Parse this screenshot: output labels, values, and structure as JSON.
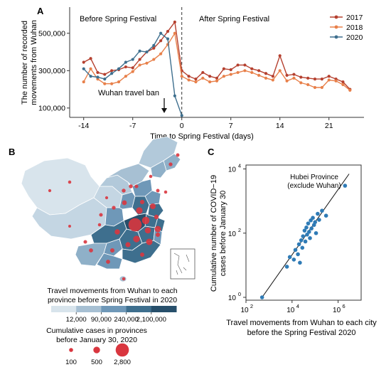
{
  "panel_a": {
    "label": "A",
    "before_label": "Before Spring Festival",
    "after_label": "After Spring Festival",
    "ban_label": "Wuhan travel ban",
    "xlabel": "Time to Spring Festival (days)",
    "ylabel_line1": "The number of recorded",
    "ylabel_line2": "movements from Wuhan",
    "xticks": [
      "-14",
      "-7",
      "0",
      "7",
      "14",
      "21"
    ],
    "yticks": [
      "100,000",
      "300,000",
      "500,000"
    ]
  },
  "panel_b": {
    "label": "B",
    "legend_title_line1": "Travel movements from Wuhan to each",
    "legend_title_line2": "province before Spring Festival in 2020",
    "color_ticks": [
      "12,000",
      "90,000",
      "240,000",
      "2,100,000"
    ],
    "size_title_line1": "Cumulative cases in provinces",
    "size_title_line2": "before January 30, 2020",
    "size_ticks": [
      "100",
      "500",
      "2,800"
    ]
  },
  "panel_c": {
    "label": "C",
    "annotation_line1": "Hubei Province",
    "annotation_line2": "(exclude Wuhan)",
    "xlabel_line1": "Travel movements from Wuhan to each city",
    "xlabel_line2": "before the Spring Festival 2020",
    "ylabel_line1": "Cumulative number of COVID−19",
    "ylabel_line2": "cases before January 30",
    "xtick_base": [
      "10",
      "10",
      "10"
    ],
    "xtick_exp": [
      "2",
      "4",
      "6"
    ],
    "ytick_base": [
      "10",
      "10",
      "10"
    ],
    "ytick_exp": [
      "0",
      "2",
      "4"
    ]
  },
  "chart_data": [
    {
      "type": "line",
      "title": "",
      "xlabel": "Time to Spring Festival (days)",
      "ylabel": "The number of recorded movements from Wuhan",
      "xlim": [
        -16,
        26
      ],
      "ylim": [
        50000,
        640000
      ],
      "series": [
        {
          "name": "2017",
          "color": "#b5402f",
          "x": [
            -14,
            -13,
            -12,
            -11,
            -10,
            -9,
            -8,
            -7,
            -6,
            -5,
            -4,
            -3,
            -2,
            -1,
            0,
            1,
            2,
            3,
            4,
            5,
            6,
            7,
            8,
            9,
            10,
            11,
            12,
            13,
            14,
            15,
            16,
            17,
            18,
            19,
            20,
            21,
            22,
            23,
            24
          ],
          "values": [
            345000,
            365000,
            290000,
            280000,
            300000,
            305000,
            320000,
            315000,
            360000,
            400000,
            420000,
            460000,
            510000,
            560000,
            300000,
            270000,
            255000,
            290000,
            270000,
            260000,
            310000,
            305000,
            330000,
            330000,
            310000,
            300000,
            285000,
            270000,
            380000,
            275000,
            280000,
            265000,
            260000,
            255000,
            255000,
            270000,
            255000,
            240000,
            200000
          ]
        },
        {
          "name": "2018",
          "color": "#e8804a",
          "x": [
            -14,
            -13,
            -12,
            -11,
            -10,
            -9,
            -8,
            -7,
            -6,
            -5,
            -4,
            -3,
            -2,
            -1,
            0,
            1,
            2,
            3,
            4,
            5,
            6,
            7,
            8,
            9,
            10,
            11,
            12,
            13,
            14,
            15,
            16,
            17,
            18,
            19,
            20,
            21,
            22,
            23,
            24
          ],
          "values": [
            240000,
            310000,
            255000,
            230000,
            230000,
            240000,
            270000,
            295000,
            330000,
            340000,
            360000,
            390000,
            440000,
            500000,
            270000,
            250000,
            240000,
            260000,
            240000,
            245000,
            270000,
            280000,
            290000,
            300000,
            290000,
            275000,
            260000,
            250000,
            300000,
            245000,
            260000,
            235000,
            225000,
            210000,
            210000,
            250000,
            245000,
            225000,
            195000
          ]
        },
        {
          "name": "2020",
          "color": "#3e6f8e",
          "x": [
            -14,
            -13,
            -12,
            -11,
            -10,
            -9,
            -8,
            -7,
            -6,
            -5,
            -4,
            -3,
            -2,
            -1,
            0
          ],
          "values": [
            310000,
            270000,
            265000,
            255000,
            285000,
            310000,
            345000,
            360000,
            405000,
            400000,
            435000,
            500000,
            470000,
            165000,
            60000
          ]
        }
      ],
      "legend": "top-right"
    },
    {
      "type": "map",
      "title": "Travel movements from Wuhan to each province before Spring Festival in 2020",
      "color_scale": [
        12000,
        90000,
        240000,
        2100000
      ],
      "size_scale": [
        100,
        500,
        2800
      ],
      "colors": [
        "#d8e4ec",
        "#a7c0d3",
        "#6f98b8",
        "#3e6f8e",
        "#274f6b"
      ],
      "bubble_color": "#d9363f"
    },
    {
      "type": "scatter",
      "title": "",
      "xlabel": "Travel movements from Wuhan to each city before the Spring Festival 2020",
      "ylabel": "Cumulative number of COVID−19 cases before January 30",
      "xscale": "log",
      "yscale": "log",
      "xlim": [
        100,
        10000000
      ],
      "ylim": [
        1,
        10000
      ],
      "color": "#2f7bb6",
      "points": [
        {
          "x": 500,
          "y": 1
        },
        {
          "x": 6000,
          "y": 9
        },
        {
          "x": 8000,
          "y": 18
        },
        {
          "x": 12000,
          "y": 15
        },
        {
          "x": 14000,
          "y": 30
        },
        {
          "x": 18000,
          "y": 22
        },
        {
          "x": 20000,
          "y": 45
        },
        {
          "x": 22000,
          "y": 12
        },
        {
          "x": 25000,
          "y": 60
        },
        {
          "x": 28000,
          "y": 35
        },
        {
          "x": 30000,
          "y": 80
        },
        {
          "x": 35000,
          "y": 120
        },
        {
          "x": 38000,
          "y": 55
        },
        {
          "x": 42000,
          "y": 150
        },
        {
          "x": 45000,
          "y": 90
        },
        {
          "x": 50000,
          "y": 200
        },
        {
          "x": 55000,
          "y": 110
        },
        {
          "x": 60000,
          "y": 70
        },
        {
          "x": 65000,
          "y": 250
        },
        {
          "x": 70000,
          "y": 140
        },
        {
          "x": 80000,
          "y": 300
        },
        {
          "x": 90000,
          "y": 180
        },
        {
          "x": 100000,
          "y": 220
        },
        {
          "x": 110000,
          "y": 100
        },
        {
          "x": 130000,
          "y": 400
        },
        {
          "x": 150000,
          "y": 260
        },
        {
          "x": 200000,
          "y": 500
        },
        {
          "x": 300000,
          "y": 350
        },
        {
          "x": 2000000,
          "y": 3000
        }
      ],
      "fit_line": [
        [
          500,
          1
        ],
        [
          3000000,
          7000
        ]
      ]
    }
  ]
}
